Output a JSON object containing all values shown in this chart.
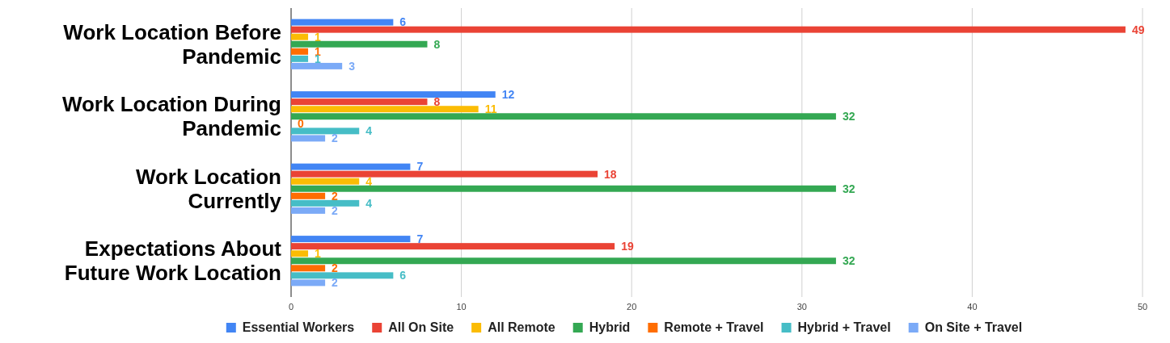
{
  "chart_data": {
    "type": "bar",
    "orientation": "horizontal",
    "categories": [
      "Work Location Before Pandemic",
      "Work Location During Pandemic",
      "Work Location Currently",
      "Expectations About Future Work Location"
    ],
    "series": [
      {
        "name": "Essential Workers",
        "color": "#4285f4",
        "values": [
          6,
          12,
          7,
          7
        ]
      },
      {
        "name": "All On Site",
        "color": "#ea4335",
        "values": [
          49,
          8,
          18,
          19
        ]
      },
      {
        "name": "All Remote",
        "color": "#fbbc04",
        "values": [
          1,
          11,
          4,
          1
        ]
      },
      {
        "name": "Hybrid",
        "color": "#34a853",
        "values": [
          8,
          32,
          32,
          32
        ]
      },
      {
        "name": "Remote + Travel",
        "color": "#ff6d01",
        "values": [
          1,
          0,
          2,
          2
        ]
      },
      {
        "name": "Hybrid + Travel",
        "color": "#46bdc6",
        "values": [
          1,
          4,
          4,
          6
        ]
      },
      {
        "name": "On Site + Travel",
        "color": "#7baaf7",
        "values": [
          3,
          2,
          2,
          2
        ]
      }
    ],
    "xlim": [
      0,
      50
    ],
    "xticks": [
      0,
      10,
      20,
      30,
      40,
      50
    ],
    "grid": "x",
    "legend": "bottom",
    "data_labels": true
  }
}
